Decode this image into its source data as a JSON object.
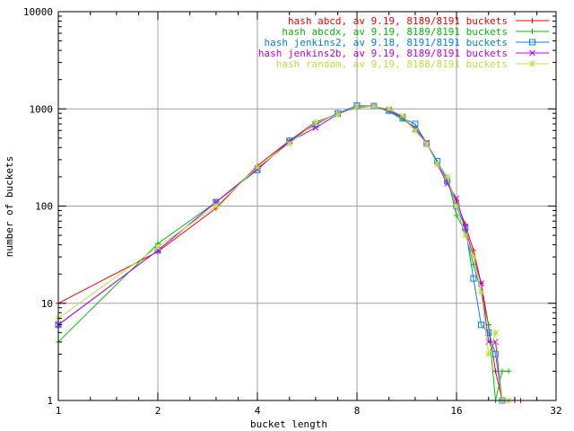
{
  "chart_data": {
    "type": "line",
    "xlabel": "bucket length",
    "ylabel": "number of buckets",
    "xscale": "log2",
    "yscale": "log10",
    "xlim": [
      1,
      32
    ],
    "ylim": [
      1,
      10000
    ],
    "xticks": [
      1,
      2,
      4,
      8,
      16,
      32
    ],
    "yticks": [
      1,
      10,
      100,
      1000,
      10000
    ],
    "grid": true,
    "legend_position": "top-right",
    "series": [
      {
        "name": "hash abcd, av 9.19, 8189/8191 buckets",
        "color": "#ff0000",
        "marker": "plus",
        "x": [
          1,
          2,
          3,
          4,
          5,
          6,
          7,
          8,
          9,
          10,
          11,
          12,
          13,
          14,
          15,
          16,
          17,
          18,
          19,
          20,
          21,
          22,
          23,
          24,
          25
        ],
        "y": [
          10,
          34,
          95,
          260,
          470,
          730,
          880,
          1070,
          1070,
          950,
          820,
          600,
          440,
          270,
          190,
          110,
          65,
          35,
          16,
          6,
          2,
          1,
          1,
          1,
          1
        ]
      },
      {
        "name": "hash abcdx, av 9.19, 8189/8191 buckets",
        "color": "#00c000",
        "marker": "plus",
        "x": [
          1,
          2,
          3,
          4,
          5,
          6,
          7,
          8,
          9,
          10,
          11,
          12,
          13,
          14,
          15,
          16,
          17,
          18,
          19,
          20,
          21,
          22,
          23
        ],
        "y": [
          4,
          41,
          110,
          245,
          460,
          700,
          900,
          1020,
          1070,
          940,
          780,
          650,
          440,
          280,
          200,
          80,
          55,
          25,
          13,
          6,
          1,
          2,
          2
        ]
      },
      {
        "name": "hash jenkins2, av 9.18, 8191/8191 buckets",
        "color": "#0080ff",
        "marker": "box",
        "x": [
          1,
          2,
          3,
          4,
          5,
          6,
          7,
          8,
          9,
          10,
          11,
          12,
          13,
          14,
          15,
          16,
          17,
          18,
          19,
          20,
          21,
          22
        ],
        "y": [
          6,
          35,
          110,
          235,
          470,
          690,
          900,
          1080,
          1070,
          960,
          800,
          700,
          440,
          290,
          180,
          100,
          60,
          18,
          6,
          5,
          3,
          1
        ]
      },
      {
        "name": "hash jenkins2b, av 9.19, 8189/8191 buckets",
        "color": "#c000ff",
        "marker": "cross",
        "x": [
          1,
          2,
          3,
          4,
          5,
          6,
          7,
          8,
          9,
          10,
          11,
          12,
          13,
          14,
          15,
          16,
          17,
          18,
          19,
          20,
          21,
          22
        ],
        "y": [
          6,
          35,
          110,
          240,
          460,
          640,
          880,
          1060,
          1070,
          970,
          830,
          620,
          450,
          270,
          170,
          120,
          60,
          30,
          16,
          4,
          4,
          1
        ]
      },
      {
        "name": "hash random, av 9.19, 8188/8191 buckets",
        "color": "#c0e040",
        "marker": "star",
        "x": [
          1,
          2,
          3,
          4,
          5,
          6,
          7,
          8,
          9,
          10,
          11,
          12,
          13,
          14,
          15,
          16,
          17,
          18,
          19,
          20,
          21,
          22,
          23
        ],
        "y": [
          7,
          38,
          100,
          250,
          440,
          720,
          870,
          1050,
          1060,
          1000,
          850,
          600,
          440,
          270,
          200,
          100,
          50,
          30,
          13,
          3,
          5,
          1,
          1
        ]
      }
    ]
  }
}
